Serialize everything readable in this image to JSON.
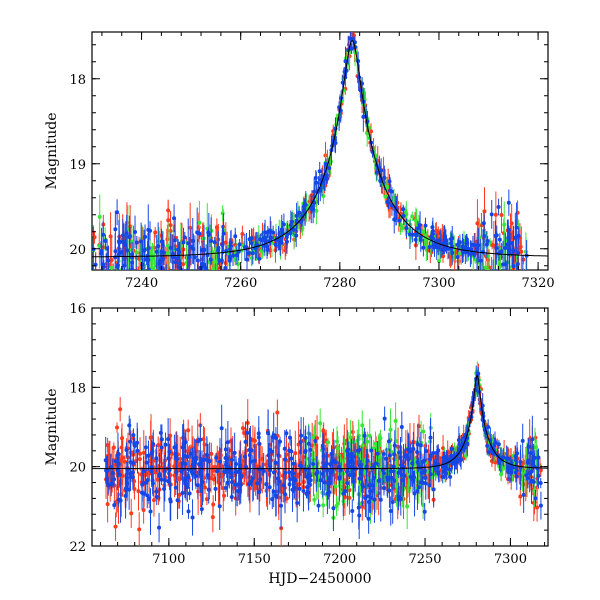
{
  "figure": {
    "description_free": true
  },
  "colors": {
    "red": "#ff3b1f",
    "green": "#39e636",
    "blue": "#1447e6",
    "model": "#000000",
    "axes": "#000000"
  },
  "chart_data": [
    {
      "type": "scatter",
      "panel": "top",
      "title": "",
      "xlabel": "",
      "ylabel": "Magnitude",
      "xlim": [
        7230,
        7322
      ],
      "ylim": [
        20.25,
        17.45
      ],
      "y_inverted": true,
      "xticks": [
        7240,
        7260,
        7280,
        7300,
        7320
      ],
      "yticks": [
        18,
        19,
        20
      ],
      "model": {
        "peak_time": 7282.5,
        "peak_mag": 17.55,
        "baseline_mag": 20.1,
        "t_E": 12
      },
      "series": [
        {
          "name": "red",
          "color": "#ff3b1f",
          "count": 330,
          "errbar_mag": [
            0.05,
            0.3
          ]
        },
        {
          "name": "green",
          "color": "#39e636",
          "count": 230,
          "errbar_mag": [
            0.05,
            0.3
          ]
        },
        {
          "name": "blue",
          "color": "#1447e6",
          "count": 380,
          "errbar_mag": [
            0.05,
            0.3
          ]
        }
      ]
    },
    {
      "type": "scatter",
      "panel": "bottom",
      "title": "",
      "xlabel": "HJD−2450000",
      "ylabel": "Magnitude",
      "xlim": [
        7055,
        7322
      ],
      "ylim": [
        22,
        16
      ],
      "y_inverted": true,
      "xticks": [
        7100,
        7150,
        7200,
        7250,
        7300
      ],
      "yticks": [
        16,
        18,
        20,
        22
      ],
      "model": {
        "peak_time": 7280.5,
        "peak_mag": 17.7,
        "baseline_mag": 20.05,
        "t_E": 12
      },
      "series": [
        {
          "name": "red",
          "color": "#ff3b1f",
          "count": 650,
          "errbar_mag": [
            0.1,
            0.6
          ]
        },
        {
          "name": "green",
          "color": "#39e636",
          "count": 200,
          "errbar_mag": [
            0.1,
            0.6
          ]
        },
        {
          "name": "blue",
          "color": "#1447e6",
          "count": 560,
          "errbar_mag": [
            0.1,
            0.6
          ]
        }
      ]
    }
  ]
}
